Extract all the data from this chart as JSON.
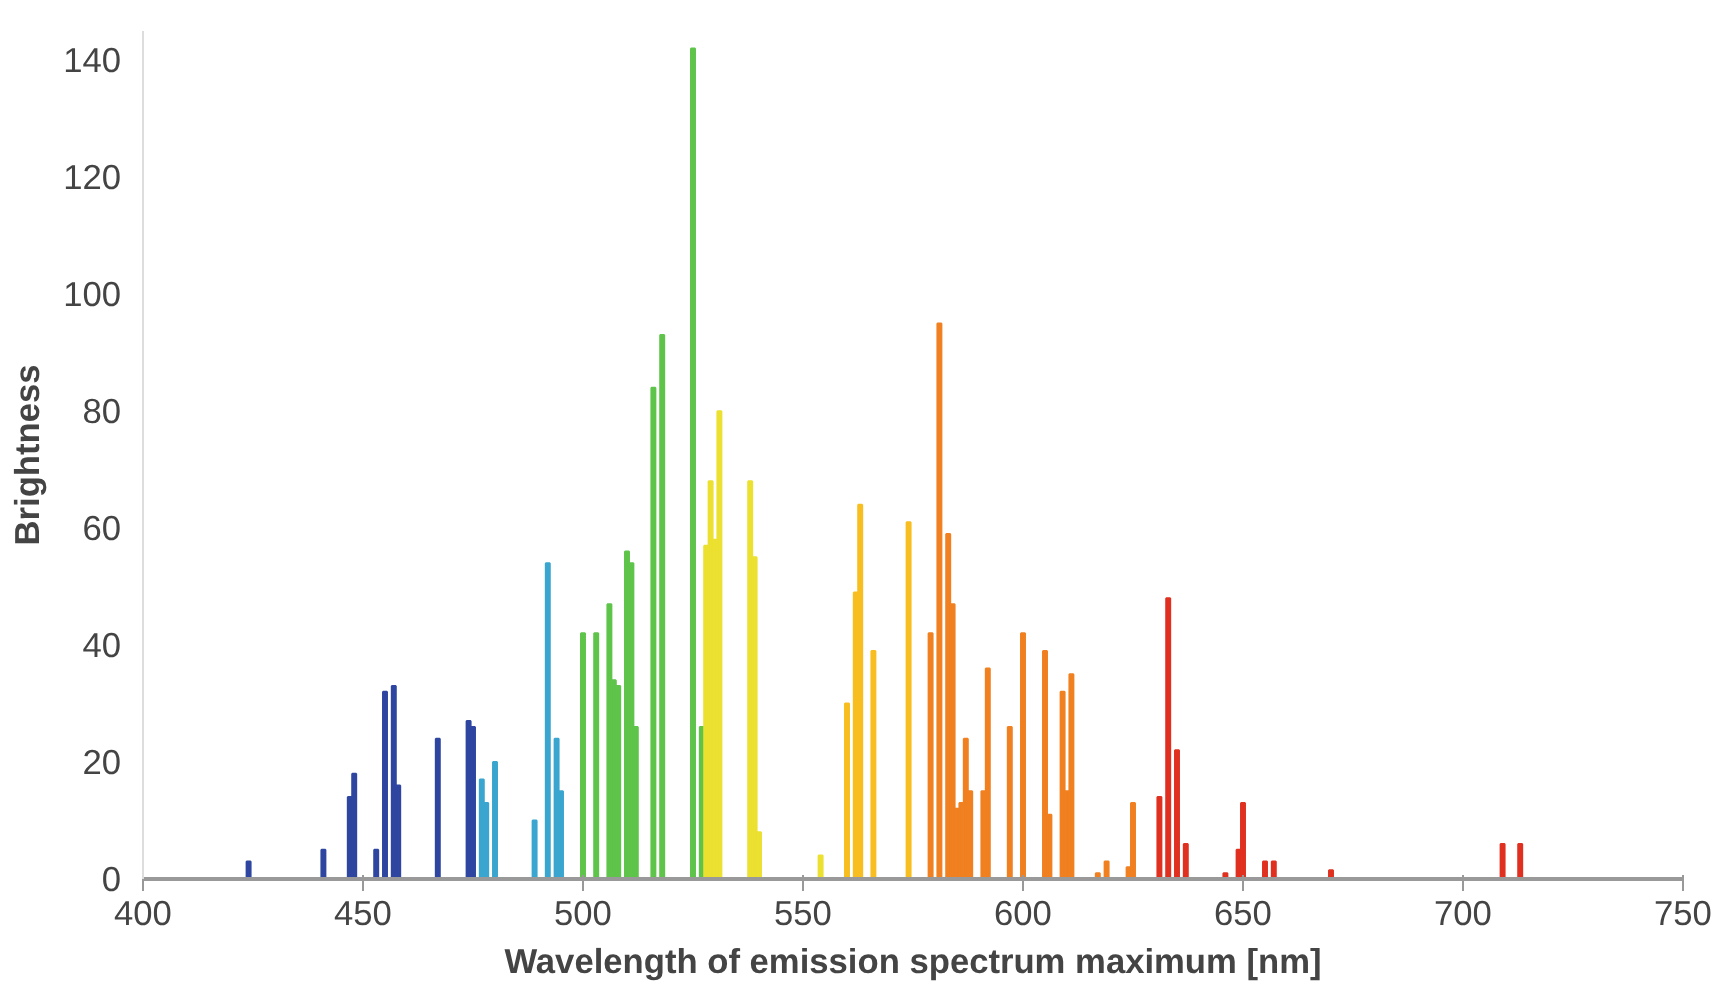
{
  "chart_data": {
    "type": "bar",
    "xlabel": "Wavelength of emission spectrum maximum [nm]",
    "ylabel": "Brightness",
    "x": [
      424,
      441,
      447,
      448,
      453,
      455,
      457,
      458,
      467,
      474,
      475,
      477,
      478,
      480,
      489,
      492,
      494,
      495,
      500,
      503,
      506,
      507,
      508,
      510,
      511,
      512,
      516,
      518,
      525,
      527,
      528,
      529,
      530,
      531,
      538,
      539,
      540,
      554,
      560,
      562,
      563,
      566,
      574,
      579,
      581,
      583,
      584,
      585,
      586,
      587,
      588,
      591,
      592,
      597,
      600,
      605,
      606,
      609,
      610,
      611,
      617,
      619,
      624,
      625,
      631,
      633,
      635,
      637,
      646,
      649,
      650,
      655,
      657,
      670,
      709,
      713
    ],
    "values": [
      3,
      5,
      14,
      18,
      5,
      32,
      33,
      16,
      24,
      27,
      26,
      17,
      13,
      20,
      10,
      54,
      24,
      15,
      42,
      42,
      47,
      34,
      33,
      56,
      54,
      26,
      84,
      93,
      142,
      26,
      57,
      68,
      58,
      80,
      68,
      55,
      8,
      4,
      30,
      49,
      64,
      39,
      61,
      42,
      95,
      59,
      47,
      12,
      13,
      24,
      15,
      15,
      36,
      26,
      42,
      39,
      11,
      32,
      15,
      35,
      1,
      3,
      2,
      13,
      14,
      48,
      22,
      6,
      1,
      5,
      13,
      3,
      3,
      1.5,
      6,
      6
    ],
    "colors": [
      "#2e46a0",
      "#2e46a0",
      "#2e46a0",
      "#2e46a0",
      "#2e46a0",
      "#2e46a0",
      "#2e46a0",
      "#2e46a0",
      "#2e46a0",
      "#2e46a0",
      "#2e46a0",
      "#3aa6d0",
      "#3aa6d0",
      "#3aa6d0",
      "#3aa6d0",
      "#3aa6d0",
      "#3aa6d0",
      "#3aa6d0",
      "#5ec44a",
      "#5ec44a",
      "#5ec44a",
      "#5ec44a",
      "#5ec44a",
      "#5ec44a",
      "#5ec44a",
      "#5ec44a",
      "#5ec44a",
      "#5ec44a",
      "#5ec44a",
      "#5ec44a",
      "#ece030",
      "#ece030",
      "#ece030",
      "#ece030",
      "#ece030",
      "#ece030",
      "#ece030",
      "#ece030",
      "#f8be20",
      "#f8be20",
      "#f8be20",
      "#f8be20",
      "#f8be20",
      "#f08020",
      "#f08020",
      "#f08020",
      "#f08020",
      "#f08020",
      "#f08020",
      "#f08020",
      "#f08020",
      "#f08020",
      "#f08020",
      "#f08020",
      "#f08020",
      "#f08020",
      "#f08020",
      "#f08020",
      "#f08020",
      "#f08020",
      "#f08020",
      "#f08020",
      "#f08020",
      "#f08020",
      "#e03020",
      "#e03020",
      "#e03020",
      "#e03020",
      "#e03020",
      "#e03020",
      "#e03020",
      "#e03020",
      "#e03020",
      "#e03020",
      "#e03020",
      "#e03020"
    ],
    "xlim": [
      400,
      750
    ],
    "xticks": [
      400,
      450,
      500,
      550,
      600,
      650,
      700,
      750
    ],
    "ylim": [
      0,
      145
    ],
    "yticks": [
      0,
      20,
      40,
      60,
      80,
      100,
      120,
      140
    ],
    "grid": false
  }
}
